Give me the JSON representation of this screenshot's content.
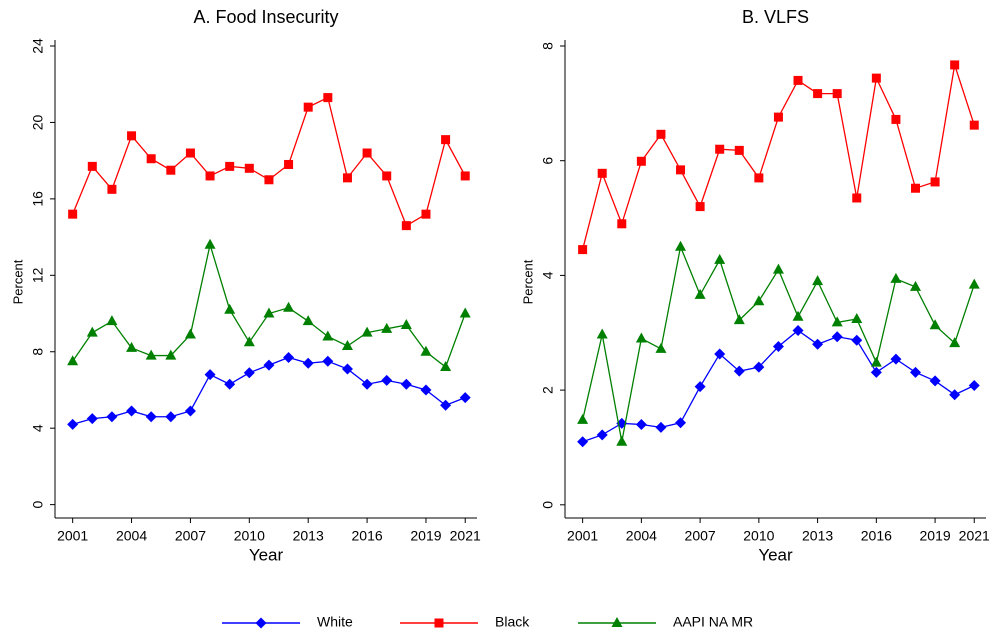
{
  "chart_data": [
    {
      "type": "line",
      "title": "A.  Food Insecurity",
      "x_label": "Year",
      "y_label": "Percent",
      "x": [
        2001,
        2002,
        2003,
        2004,
        2005,
        2006,
        2007,
        2008,
        2009,
        2010,
        2011,
        2012,
        2013,
        2014,
        2015,
        2016,
        2017,
        2018,
        2019,
        2020,
        2021
      ],
      "xlim": [
        2000.1,
        2021.6
      ],
      "xticks": [
        2001,
        2004,
        2007,
        2010,
        2013,
        2016,
        2019,
        2021
      ],
      "ylim": [
        -0.7,
        24
      ],
      "yticks": [
        0,
        4,
        8,
        12,
        16,
        20,
        24
      ],
      "series": [
        {
          "name": "White",
          "color": "#0000ff",
          "marker": "diamond",
          "values": [
            4.2,
            4.5,
            4.6,
            4.9,
            4.6,
            4.6,
            4.9,
            6.8,
            6.3,
            6.9,
            7.3,
            7.7,
            7.4,
            7.5,
            7.1,
            6.3,
            6.5,
            6.3,
            6.0,
            5.2,
            5.6
          ]
        },
        {
          "name": "Black",
          "color": "#ff0000",
          "marker": "square",
          "values": [
            15.2,
            17.7,
            16.5,
            19.3,
            18.1,
            17.5,
            18.4,
            17.2,
            17.7,
            17.6,
            17.0,
            17.8,
            20.8,
            21.3,
            17.1,
            18.4,
            17.2,
            14.6,
            15.2,
            19.1,
            17.2
          ]
        },
        {
          "name": "AAPI NA MR",
          "color": "#008000",
          "marker": "triangle",
          "values": [
            7.5,
            9.0,
            9.6,
            8.2,
            7.8,
            7.8,
            8.9,
            13.6,
            10.2,
            8.5,
            10.0,
            10.3,
            9.6,
            8.8,
            8.3,
            9.0,
            9.2,
            9.4,
            8.0,
            7.2,
            10.0
          ]
        }
      ]
    },
    {
      "type": "line",
      "title": "B. VLFS",
      "x_label": "Year",
      "y_label": "Percent",
      "x": [
        2001,
        2002,
        2003,
        2004,
        2005,
        2006,
        2007,
        2008,
        2009,
        2010,
        2011,
        2012,
        2013,
        2014,
        2015,
        2016,
        2017,
        2018,
        2019,
        2020,
        2021
      ],
      "xlim": [
        2000.1,
        2021.6
      ],
      "xticks": [
        2001,
        2004,
        2007,
        2010,
        2013,
        2016,
        2019,
        2021
      ],
      "ylim": [
        -0.23,
        8
      ],
      "yticks": [
        0,
        2,
        4,
        6,
        8
      ],
      "series": [
        {
          "name": "White",
          "color": "#0000ff",
          "marker": "diamond",
          "values": [
            1.1,
            1.22,
            1.42,
            1.4,
            1.35,
            1.43,
            2.06,
            2.63,
            2.33,
            2.4,
            2.76,
            3.04,
            2.8,
            2.93,
            2.87,
            2.31,
            2.54,
            2.31,
            2.16,
            1.92,
            2.08
          ]
        },
        {
          "name": "Black",
          "color": "#ff0000",
          "marker": "square",
          "values": [
            4.45,
            5.78,
            4.9,
            5.99,
            6.46,
            5.84,
            5.2,
            6.2,
            6.18,
            5.7,
            6.76,
            7.4,
            7.17,
            7.17,
            5.35,
            7.44,
            6.72,
            5.52,
            5.63,
            7.67,
            6.62
          ]
        },
        {
          "name": "AAPI NA MR",
          "color": "#008000",
          "marker": "triangle",
          "values": [
            1.48,
            2.97,
            1.1,
            2.9,
            2.72,
            4.5,
            3.66,
            4.27,
            3.22,
            3.55,
            4.1,
            3.28,
            3.9,
            3.18,
            3.24,
            2.48,
            3.94,
            3.8,
            3.13,
            2.82,
            3.84
          ]
        }
      ]
    }
  ]
}
